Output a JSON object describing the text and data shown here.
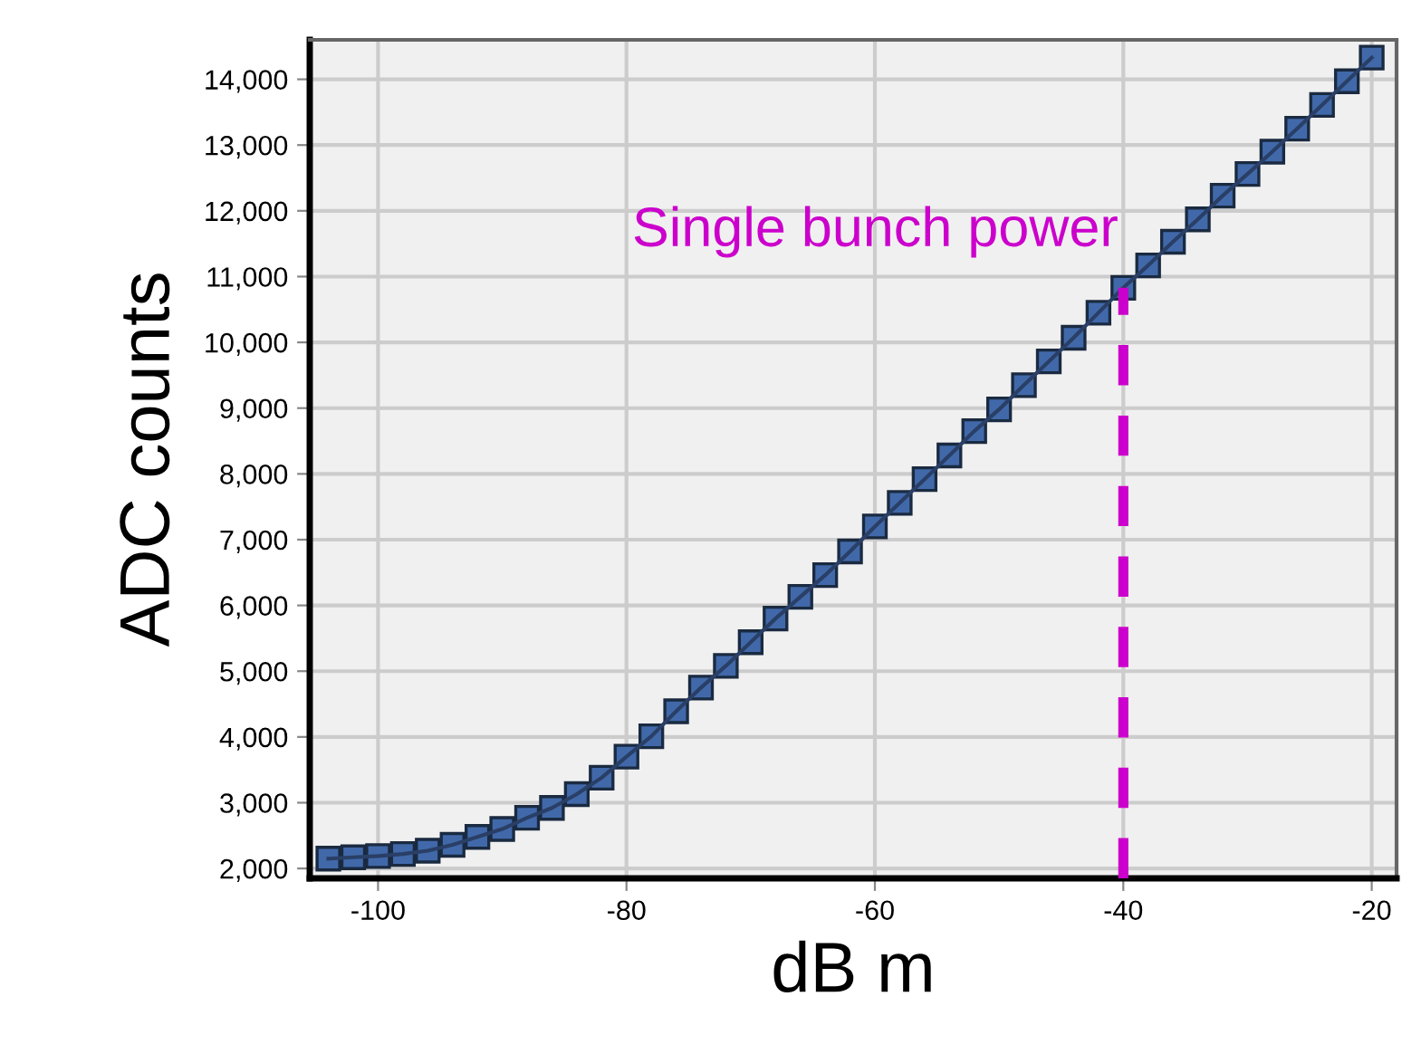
{
  "chart_data": {
    "type": "line",
    "xlabel": "dB m",
    "ylabel": "ADC counts",
    "x": [
      -104,
      -102,
      -100,
      -98,
      -96,
      -94,
      -92,
      -90,
      -88,
      -86,
      -84,
      -82,
      -80,
      -78,
      -76,
      -74,
      -72,
      -70,
      -68,
      -66,
      -64,
      -62,
      -60,
      -58,
      -56,
      -54,
      -52,
      -50,
      -48,
      -46,
      -44,
      -42,
      -40,
      -38,
      -36,
      -34,
      -32,
      -30,
      -28,
      -26,
      -24,
      -22,
      -20
    ],
    "series": [
      {
        "color": "#4169aa",
        "values": [
          2150,
          2170,
          2190,
          2220,
          2270,
          2360,
          2480,
          2600,
          2770,
          2920,
          3130,
          3380,
          3700,
          4010,
          4390,
          4750,
          5080,
          5440,
          5800,
          6130,
          6460,
          6820,
          7200,
          7560,
          7920,
          8280,
          8650,
          8980,
          9350,
          9710,
          10070,
          10450,
          10830,
          11170,
          11530,
          11870,
          12230,
          12560,
          12900,
          13250,
          13610,
          13970,
          14330
        ]
      }
    ],
    "marker": "square",
    "xlim": [
      -105.5,
      -18
    ],
    "ylim": [
      1850,
      14600
    ],
    "xticks": [
      -100,
      -80,
      -60,
      -40,
      {
        "value": -20,
        "label": "-20"
      }
    ],
    "yticks": [
      {
        "value": 2000,
        "label": "2,000"
      },
      {
        "value": 3000,
        "label": "3,000"
      },
      {
        "value": 4000,
        "label": "4,000"
      },
      {
        "value": 5000,
        "label": "5,000"
      },
      {
        "value": 6000,
        "label": "6,000"
      },
      {
        "value": 7000,
        "label": "7,000"
      },
      {
        "value": 8000,
        "label": "8,000"
      },
      {
        "value": 9000,
        "label": "9,000"
      },
      {
        "value": 10000,
        "label": "10,000"
      },
      {
        "value": 11000,
        "label": "11,000"
      },
      {
        "value": 12000,
        "label": "12,000"
      },
      {
        "value": 13000,
        "label": "13,000"
      },
      {
        "value": 14000,
        "label": "14,000"
      }
    ],
    "grid": true,
    "ref_lines": [
      {
        "axis": "x",
        "value": -40,
        "color": "#cc00cc",
        "line_style": "dashed"
      }
    ],
    "annotations": [
      {
        "text": "Single bunch power",
        "x": -40,
        "y": 10830
      }
    ]
  }
}
